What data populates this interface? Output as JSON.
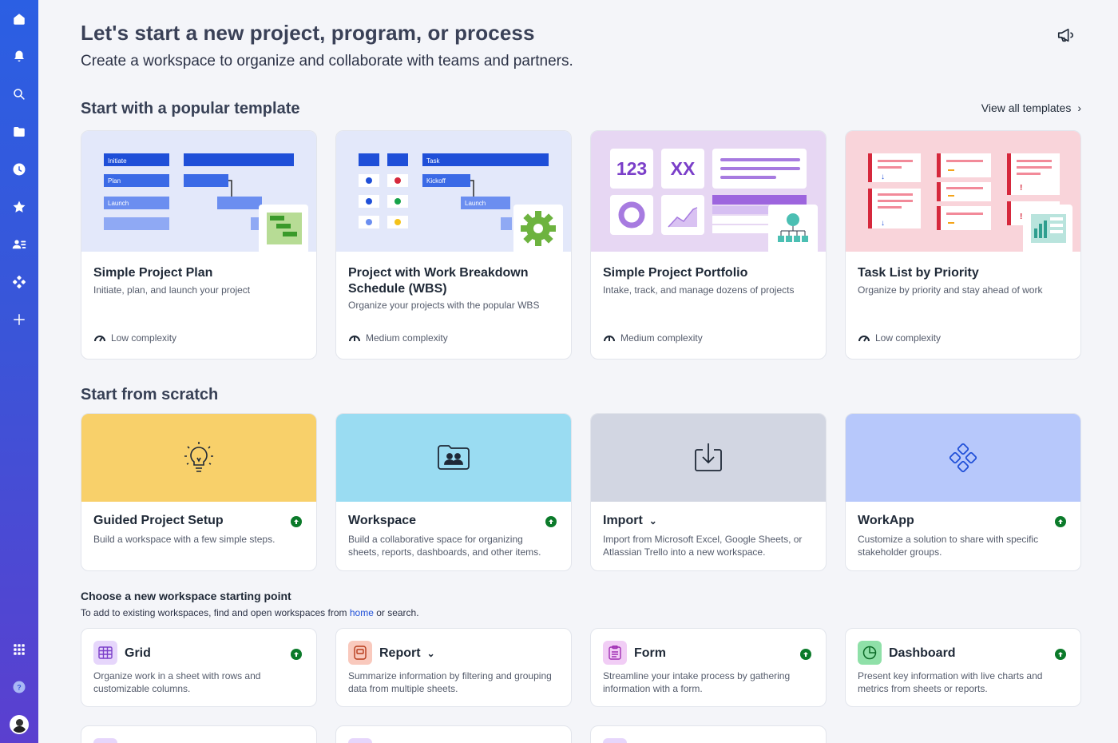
{
  "header": {
    "title": "Let's start a new project, program, or process",
    "subtitle": "Create a workspace to organize and collaborate with teams and partners."
  },
  "templates": {
    "heading": "Start with a popular template",
    "view_all": "View all templates",
    "items": [
      {
        "title": "Simple Project Plan",
        "desc": "Initiate, plan, and launch your project",
        "complexity": "Low complexity",
        "thumb": {
          "labels": [
            "Initiate",
            "Plan",
            "Launch"
          ]
        }
      },
      {
        "title": "Project with Work Breakdown Schedule (WBS)",
        "desc": "Organize your projects with the popular WBS",
        "complexity": "Medium complexity",
        "thumb": {
          "labels": [
            "Task",
            "Kickoff",
            "Launch"
          ]
        }
      },
      {
        "title": "Simple Project Portfolio",
        "desc": "Intake, track, and manage dozens of projects",
        "complexity": "Medium complexity",
        "thumb": {
          "labels": [
            "123",
            "XX"
          ]
        }
      },
      {
        "title": "Task List by Priority",
        "desc": "Organize by priority and stay ahead of work",
        "complexity": "Low complexity",
        "thumb": {
          "labels": []
        }
      }
    ]
  },
  "scratch": {
    "heading": "Start from scratch",
    "items": [
      {
        "title": "Guided Project Setup",
        "desc": "Build a workspace with a few simple steps."
      },
      {
        "title": "Workspace",
        "desc": "Build a collaborative space for organizing sheets, reports, dashboards, and other items."
      },
      {
        "title": "Import",
        "desc": "Import from Microsoft Excel, Google Sheets, or Atlassian Trello into a new workspace."
      },
      {
        "title": "WorkApp",
        "desc": "Customize a solution to share with specific stakeholder groups."
      }
    ]
  },
  "starting_point": {
    "heading": "Choose a new workspace starting point",
    "sub_before": "To add to existing workspaces, find and open workspaces from ",
    "sub_link": "home",
    "sub_after": " or search.",
    "items": [
      {
        "title": "Grid",
        "desc": "Organize work in a sheet with rows and customizable columns."
      },
      {
        "title": "Report",
        "desc": "Summarize information by filtering and grouping data from multiple sheets."
      },
      {
        "title": "Form",
        "desc": "Streamline your intake process by gathering information with a form."
      },
      {
        "title": "Dashboard",
        "desc": "Present key information with live charts and metrics from sheets or reports."
      }
    ]
  },
  "colors": {
    "sidebar_top": "#2b5fe3",
    "sidebar_bottom": "#5b3fcf",
    "accent_green": "#0b7a2a",
    "link": "#1f4fd8"
  },
  "sidebar_icons": [
    "home-icon",
    "bell-icon",
    "search-icon",
    "folder-icon",
    "clock-icon",
    "star-icon",
    "contacts-icon",
    "solutions-icon",
    "plus-icon",
    "apps-grid-icon",
    "help-icon",
    "avatar"
  ]
}
